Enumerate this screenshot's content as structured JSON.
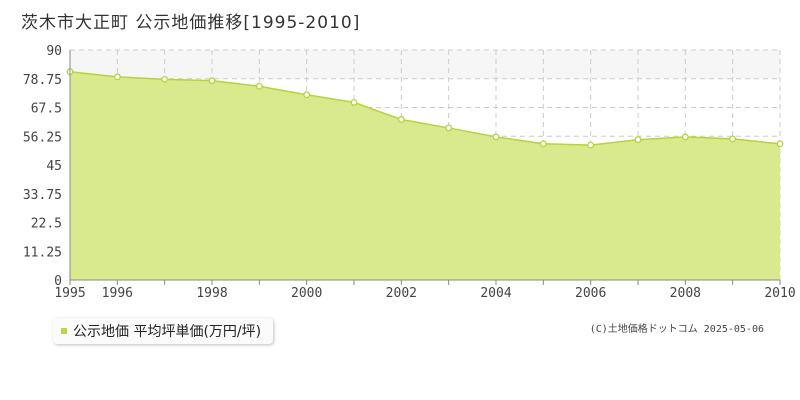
{
  "title": "茨木市大正町 公示地価推移[1995-2010]",
  "legend": {
    "label": "公示地価 平均坪単価(万円/坪)"
  },
  "credit": "(C)土地価格ドットコム 2025-05-06",
  "colors": {
    "fill": "#d9ea8e",
    "line": "#b5d33d",
    "point_fill": "#ffffff",
    "band": "#f6f6f6",
    "grid": "#cccccc"
  },
  "chart_data": {
    "type": "area",
    "x": [
      1995,
      1996,
      1997,
      1998,
      1999,
      2000,
      2001,
      2002,
      2003,
      2004,
      2005,
      2006,
      2007,
      2008,
      2009,
      2010
    ],
    "series": [
      {
        "name": "公示地価 平均坪単価(万円/坪)",
        "values": [
          81.5,
          79.5,
          78.5,
          78.0,
          75.8,
          72.5,
          69.5,
          62.8,
          59.5,
          56.0,
          53.3,
          52.8,
          54.9,
          56.0,
          55.2,
          53.3
        ]
      }
    ],
    "ylim": [
      0,
      90
    ],
    "yticks": [
      "0",
      "11.25",
      "22.5",
      "33.75",
      "45",
      "56.25",
      "67.5",
      "78.75",
      "90"
    ],
    "xticks": [
      "1995",
      "1996",
      "1998",
      "2000",
      "2002",
      "2004",
      "2006",
      "2008",
      "2010"
    ],
    "grid": true
  }
}
